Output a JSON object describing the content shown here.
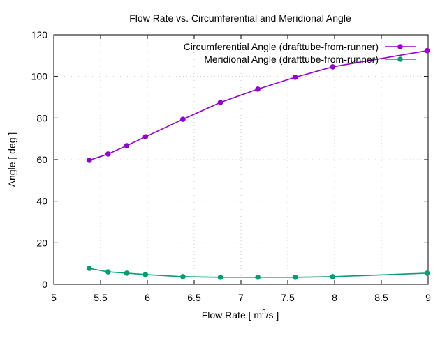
{
  "chart_data": {
    "type": "line",
    "title": "Flow Rate vs. Circumferential and Meridional Angle",
    "xlabel_main": "Flow Rate [ m",
    "xlabel_sup": "3",
    "xlabel_tail": "/s ]",
    "ylabel": "Angle [ deg ]",
    "xlim": [
      5,
      9
    ],
    "ylim": [
      0,
      120
    ],
    "xticks": [
      5,
      5.5,
      6,
      6.5,
      7,
      7.5,
      8,
      8.5,
      9
    ],
    "xtick_labels": [
      "5",
      "5.5",
      "6",
      "6.5",
      "7",
      "7.5",
      "8",
      "8.5",
      "9"
    ],
    "yticks": [
      0,
      20,
      40,
      60,
      80,
      100,
      120
    ],
    "ytick_labels": [
      "0",
      "20",
      "40",
      "60",
      "80",
      "100",
      "120"
    ],
    "grid": true,
    "legend_position": "top-right",
    "series": [
      {
        "name": "Circumferential Angle (drafttube-from-runner)",
        "color": "#9400d3",
        "x": [
          5.38,
          5.58,
          5.78,
          5.98,
          6.38,
          6.78,
          7.18,
          7.58,
          7.98,
          8.99
        ],
        "y": [
          59.7,
          62.7,
          66.7,
          71.0,
          79.4,
          87.5,
          93.9,
          99.6,
          104.6,
          112.4
        ]
      },
      {
        "name": "Meridional Angle (drafttube-from-runner)",
        "color": "#009e73",
        "x": [
          5.38,
          5.58,
          5.78,
          5.98,
          6.38,
          6.78,
          7.18,
          7.58,
          7.98,
          8.99
        ],
        "y": [
          7.7,
          6.0,
          5.4,
          4.7,
          3.7,
          3.4,
          3.4,
          3.4,
          3.7,
          5.4
        ]
      }
    ]
  }
}
